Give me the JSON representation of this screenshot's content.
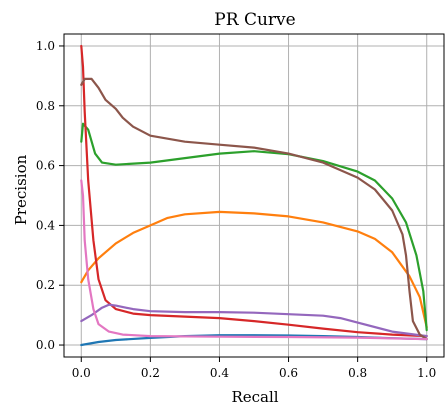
{
  "chart_data": {
    "type": "line",
    "title": "PR Curve",
    "xlabel": "Recall",
    "ylabel": "Precision",
    "xlim": [
      -0.05,
      1.05
    ],
    "ylim": [
      -0.04,
      1.04
    ],
    "grid": true,
    "x_ticks": [
      "0.0",
      "0.2",
      "0.4",
      "0.6",
      "0.8",
      "1.0"
    ],
    "y_ticks": [
      "0.0",
      "0.2",
      "0.4",
      "0.6",
      "0.8",
      "1.0"
    ],
    "series": [
      {
        "color": "#1f77b4",
        "points": [
          [
            0.0,
            0.0
          ],
          [
            0.05,
            0.01
          ],
          [
            0.1,
            0.017
          ],
          [
            0.2,
            0.024
          ],
          [
            0.3,
            0.03
          ],
          [
            0.4,
            0.033
          ],
          [
            0.5,
            0.033
          ],
          [
            0.6,
            0.032
          ],
          [
            0.7,
            0.03
          ],
          [
            0.8,
            0.027
          ],
          [
            0.9,
            0.023
          ],
          [
            1.0,
            0.02
          ]
        ]
      },
      {
        "color": "#ff7f0e",
        "points": [
          [
            0.0,
            0.21
          ],
          [
            0.02,
            0.25
          ],
          [
            0.05,
            0.29
          ],
          [
            0.1,
            0.34
          ],
          [
            0.15,
            0.375
          ],
          [
            0.2,
            0.4
          ],
          [
            0.25,
            0.425
          ],
          [
            0.3,
            0.437
          ],
          [
            0.4,
            0.445
          ],
          [
            0.5,
            0.44
          ],
          [
            0.6,
            0.43
          ],
          [
            0.7,
            0.41
          ],
          [
            0.8,
            0.38
          ],
          [
            0.85,
            0.355
          ],
          [
            0.9,
            0.31
          ],
          [
            0.95,
            0.23
          ],
          [
            0.98,
            0.16
          ],
          [
            1.0,
            0.06
          ]
        ]
      },
      {
        "color": "#2ca02c",
        "points": [
          [
            0.0,
            0.68
          ],
          [
            0.005,
            0.74
          ],
          [
            0.02,
            0.72
          ],
          [
            0.04,
            0.64
          ],
          [
            0.06,
            0.61
          ],
          [
            0.1,
            0.603
          ],
          [
            0.2,
            0.61
          ],
          [
            0.3,
            0.625
          ],
          [
            0.4,
            0.64
          ],
          [
            0.5,
            0.648
          ],
          [
            0.6,
            0.638
          ],
          [
            0.7,
            0.615
          ],
          [
            0.8,
            0.58
          ],
          [
            0.85,
            0.55
          ],
          [
            0.9,
            0.49
          ],
          [
            0.94,
            0.41
          ],
          [
            0.97,
            0.3
          ],
          [
            0.99,
            0.18
          ],
          [
            1.0,
            0.05
          ]
        ]
      },
      {
        "color": "#d62728",
        "points": [
          [
            0.0,
            1.0
          ],
          [
            0.005,
            0.93
          ],
          [
            0.01,
            0.78
          ],
          [
            0.02,
            0.55
          ],
          [
            0.035,
            0.35
          ],
          [
            0.05,
            0.22
          ],
          [
            0.07,
            0.15
          ],
          [
            0.1,
            0.12
          ],
          [
            0.15,
            0.105
          ],
          [
            0.2,
            0.1
          ],
          [
            0.3,
            0.095
          ],
          [
            0.4,
            0.09
          ],
          [
            0.5,
            0.08
          ],
          [
            0.6,
            0.068
          ],
          [
            0.7,
            0.055
          ],
          [
            0.8,
            0.043
          ],
          [
            0.9,
            0.035
          ],
          [
            1.0,
            0.03
          ]
        ]
      },
      {
        "color": "#9467bd",
        "points": [
          [
            0.0,
            0.08
          ],
          [
            0.03,
            0.1
          ],
          [
            0.06,
            0.125
          ],
          [
            0.08,
            0.135
          ],
          [
            0.1,
            0.132
          ],
          [
            0.15,
            0.12
          ],
          [
            0.2,
            0.113
          ],
          [
            0.3,
            0.11
          ],
          [
            0.4,
            0.11
          ],
          [
            0.5,
            0.108
          ],
          [
            0.6,
            0.103
          ],
          [
            0.7,
            0.098
          ],
          [
            0.75,
            0.09
          ],
          [
            0.8,
            0.075
          ],
          [
            0.9,
            0.045
          ],
          [
            1.0,
            0.03
          ]
        ]
      },
      {
        "color": "#8c564b",
        "points": [
          [
            0.0,
            0.87
          ],
          [
            0.01,
            0.89
          ],
          [
            0.03,
            0.89
          ],
          [
            0.05,
            0.86
          ],
          [
            0.07,
            0.82
          ],
          [
            0.1,
            0.79
          ],
          [
            0.12,
            0.76
          ],
          [
            0.15,
            0.73
          ],
          [
            0.2,
            0.7
          ],
          [
            0.3,
            0.68
          ],
          [
            0.4,
            0.67
          ],
          [
            0.5,
            0.66
          ],
          [
            0.6,
            0.64
          ],
          [
            0.7,
            0.61
          ],
          [
            0.8,
            0.56
          ],
          [
            0.85,
            0.52
          ],
          [
            0.9,
            0.45
          ],
          [
            0.93,
            0.37
          ],
          [
            0.94,
            0.3
          ],
          [
            0.95,
            0.18
          ],
          [
            0.96,
            0.08
          ],
          [
            0.98,
            0.035
          ],
          [
            1.0,
            0.02
          ]
        ]
      },
      {
        "color": "#e377c2",
        "points": [
          [
            0.0,
            0.55
          ],
          [
            0.005,
            0.5
          ],
          [
            0.01,
            0.35
          ],
          [
            0.02,
            0.22
          ],
          [
            0.035,
            0.12
          ],
          [
            0.05,
            0.07
          ],
          [
            0.08,
            0.045
          ],
          [
            0.12,
            0.035
          ],
          [
            0.2,
            0.03
          ],
          [
            0.4,
            0.028
          ],
          [
            0.6,
            0.027
          ],
          [
            0.8,
            0.025
          ],
          [
            1.0,
            0.02
          ]
        ]
      }
    ]
  }
}
